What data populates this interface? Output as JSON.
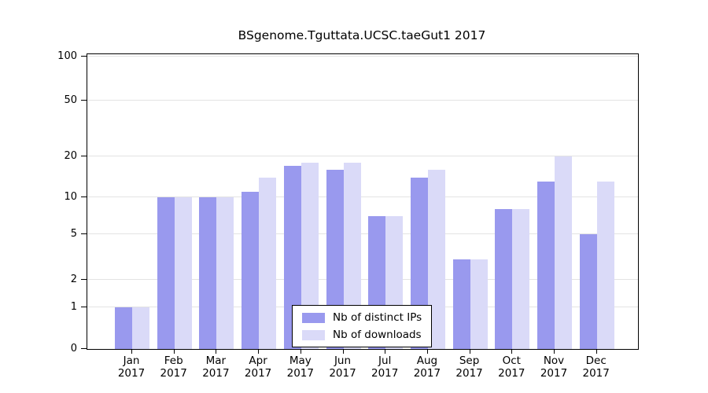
{
  "title": "BSgenome.Tguttata.UCSC.taeGut1 2017",
  "legend": {
    "items": [
      {
        "label": "Nb of distinct IPs",
        "color": "#9999ee"
      },
      {
        "label": "Nb of downloads",
        "color": "#dadaf8"
      }
    ]
  },
  "chart_data": {
    "type": "bar",
    "title": "BSgenome.Tguttata.UCSC.taeGut1 2017",
    "categories": [
      "Jan",
      "Feb",
      "Mar",
      "Apr",
      "May",
      "Jun",
      "Jul",
      "Aug",
      "Sep",
      "Oct",
      "Nov",
      "Dec"
    ],
    "year_label": "2017",
    "series": [
      {
        "name": "Nb of distinct IPs",
        "color": "#9999ee",
        "values": [
          1,
          10,
          10,
          11,
          17,
          16,
          7,
          14,
          3,
          8,
          13,
          5
        ]
      },
      {
        "name": "Nb of downloads",
        "color": "#dadaf8",
        "values": [
          1,
          10,
          10,
          14,
          18,
          18,
          7,
          16,
          3,
          8,
          20,
          13
        ]
      }
    ],
    "yticks": [
      0,
      1,
      2,
      5,
      10,
      20,
      50,
      100
    ],
    "ylim": [
      0,
      100
    ],
    "yscale": "log-like",
    "grid": true,
    "legend_position": "bottom-center-inside"
  }
}
